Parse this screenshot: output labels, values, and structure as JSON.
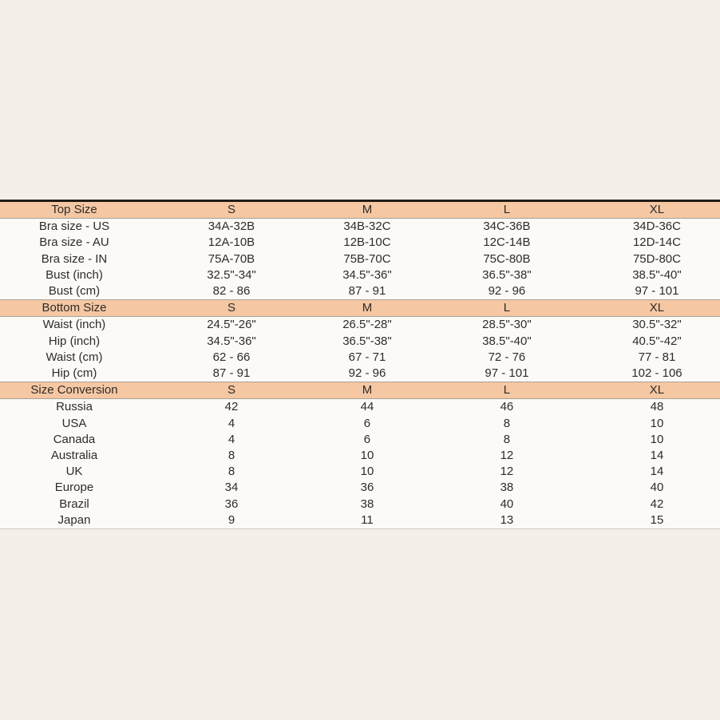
{
  "page": {
    "background_color": "#f4efe8",
    "header_bg_color": "#f5c7a3",
    "row_bg_color": "#fbfaf6",
    "text_color": "#2e2c29",
    "top_border_color": "#221c16",
    "header_border_color": "#a9a199"
  },
  "size_labels": [
    "S",
    "M",
    "L",
    "XL"
  ],
  "chart_data": [
    {
      "type": "table",
      "title": "Top Size",
      "columns": [
        "Top Size",
        "S",
        "M",
        "L",
        "XL"
      ],
      "rows": [
        [
          "Bra size - US",
          "34A-32B",
          "34B-32C",
          "34C-36B",
          "34D-36C"
        ],
        [
          "Bra size - AU",
          "12A-10B",
          "12B-10C",
          "12C-14B",
          "12D-14C"
        ],
        [
          "Bra size - IN",
          "75A-70B",
          "75B-70C",
          "75C-80B",
          "75D-80C"
        ],
        [
          "Bust (inch)",
          "32.5\"-34\"",
          "34.5\"-36\"",
          "36.5\"-38\"",
          "38.5\"-40\""
        ],
        [
          "Bust (cm)",
          "82 - 86",
          "87 - 91",
          "92 - 96",
          "97 - 101"
        ]
      ]
    },
    {
      "type": "table",
      "title": "Bottom Size",
      "columns": [
        "Bottom Size",
        "S",
        "M",
        "L",
        "XL"
      ],
      "rows": [
        [
          "Waist (inch)",
          "24.5\"-26\"",
          "26.5\"-28\"",
          "28.5\"-30\"",
          "30.5\"-32\""
        ],
        [
          "Hip (inch)",
          "34.5\"-36\"",
          "36.5\"-38\"",
          "38.5\"-40\"",
          "40.5\"-42\""
        ],
        [
          "Waist (cm)",
          "62 - 66",
          "67 - 71",
          "72 - 76",
          "77 - 81"
        ],
        [
          "Hip (cm)",
          "87 - 91",
          "92 - 96",
          "97 - 101",
          "102 - 106"
        ]
      ]
    },
    {
      "type": "table",
      "title": "Size Conversion",
      "columns": [
        "Size Conversion",
        "S",
        "M",
        "L",
        "XL"
      ],
      "rows": [
        [
          "Russia",
          "42",
          "44",
          "46",
          "48"
        ],
        [
          "USA",
          "4",
          "6",
          "8",
          "10"
        ],
        [
          "Canada",
          "4",
          "6",
          "8",
          "10"
        ],
        [
          "Australia",
          "8",
          "10",
          "12",
          "14"
        ],
        [
          "UK",
          "8",
          "10",
          "12",
          "14"
        ],
        [
          "Europe",
          "34",
          "36",
          "38",
          "40"
        ],
        [
          "Brazil",
          "36",
          "38",
          "40",
          "42"
        ],
        [
          "Japan",
          "9",
          "11",
          "13",
          "15"
        ]
      ]
    }
  ]
}
